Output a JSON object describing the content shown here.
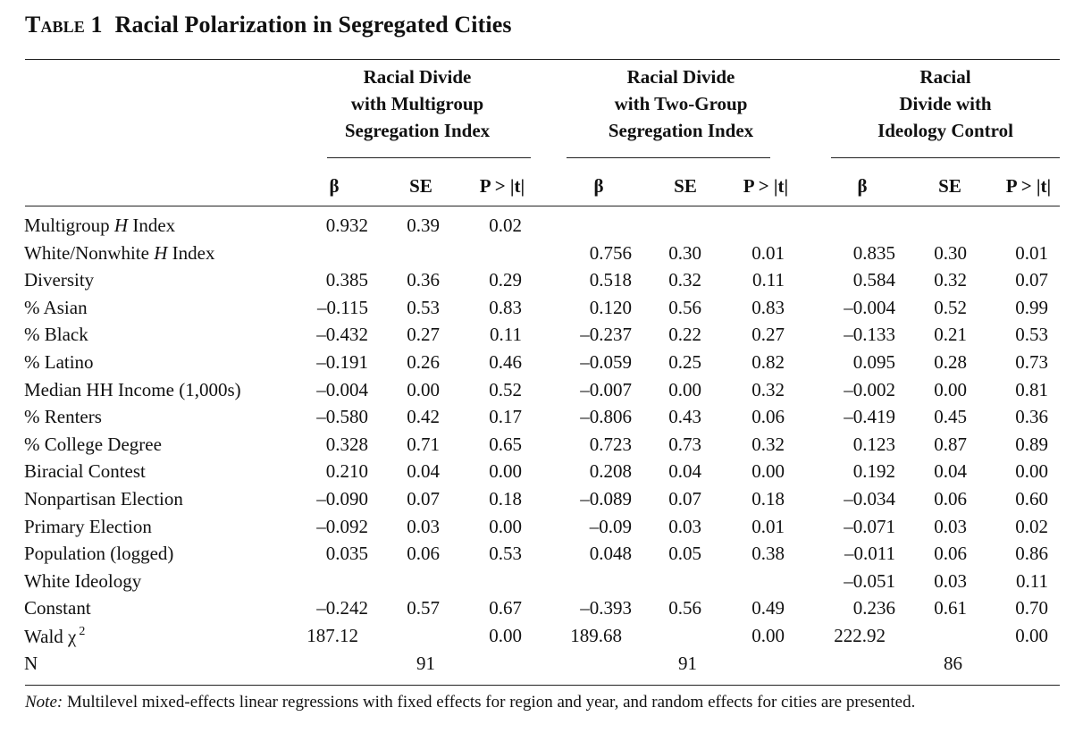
{
  "caption": {
    "label": "Table 1",
    "title": "Racial Polarization in Segregated Cities"
  },
  "groups": [
    {
      "lines": [
        "Racial Divide",
        "with Multigroup",
        "Segregation Index"
      ]
    },
    {
      "lines": [
        "Racial Divide",
        "with Two-Group",
        "Segregation Index"
      ]
    },
    {
      "lines": [
        "Racial",
        "Divide with",
        "Ideology Control"
      ]
    }
  ],
  "col_headers": [
    "β",
    "SE",
    "P > |t|"
  ],
  "rows": [
    {
      "label": "Multigroup H Index",
      "label_parts": [
        "Multigroup ",
        "H",
        " Index"
      ],
      "values": [
        "0.932",
        "0.39",
        "0.02",
        "",
        "",
        "",
        "",
        "",
        ""
      ]
    },
    {
      "label": "White/Nonwhite H Index",
      "label_parts": [
        "White/Nonwhite ",
        "H",
        " Index"
      ],
      "values": [
        "",
        "",
        "",
        "0.756",
        "0.30",
        "0.01",
        "0.835",
        "0.30",
        "0.01"
      ]
    },
    {
      "label": "Diversity",
      "values": [
        "0.385",
        "0.36",
        "0.29",
        "0.518",
        "0.32",
        "0.11",
        "0.584",
        "0.32",
        "0.07"
      ]
    },
    {
      "label": "% Asian",
      "values": [
        "–0.115",
        "0.53",
        "0.83",
        "0.120",
        "0.56",
        "0.83",
        "–0.004",
        "0.52",
        "0.99"
      ]
    },
    {
      "label": "% Black",
      "values": [
        "–0.432",
        "0.27",
        "0.11",
        "–0.237",
        "0.22",
        "0.27",
        "–0.133",
        "0.21",
        "0.53"
      ]
    },
    {
      "label": "% Latino",
      "values": [
        "–0.191",
        "0.26",
        "0.46",
        "–0.059",
        "0.25",
        "0.82",
        "0.095",
        "0.28",
        "0.73"
      ]
    },
    {
      "label": "Median HH Income (1,000s)",
      "values": [
        "–0.004",
        "0.00",
        "0.52",
        "–0.007",
        "0.00",
        "0.32",
        "–0.002",
        "0.00",
        "0.81"
      ]
    },
    {
      "label": "% Renters",
      "values": [
        "–0.580",
        "0.42",
        "0.17",
        "–0.806",
        "0.43",
        "0.06",
        "–0.419",
        "0.45",
        "0.36"
      ]
    },
    {
      "label": "% College Degree",
      "values": [
        "0.328",
        "0.71",
        "0.65",
        "0.723",
        "0.73",
        "0.32",
        "0.123",
        "0.87",
        "0.89"
      ]
    },
    {
      "label": "Biracial Contest",
      "values": [
        "0.210",
        "0.04",
        "0.00",
        "0.208",
        "0.04",
        "0.00",
        "0.192",
        "0.04",
        "0.00"
      ]
    },
    {
      "label": "Nonpartisan Election",
      "values": [
        "–0.090",
        "0.07",
        "0.18",
        "–0.089",
        "0.07",
        "0.18",
        "–0.034",
        "0.06",
        "0.60"
      ]
    },
    {
      "label": "Primary Election",
      "values": [
        "–0.092",
        "0.03",
        "0.00",
        "–0.09",
        "0.03",
        "0.01",
        "–0.071",
        "0.03",
        "0.02"
      ]
    },
    {
      "label": "Population (logged)",
      "values": [
        "0.035",
        "0.06",
        "0.53",
        "0.048",
        "0.05",
        "0.38",
        "–0.011",
        "0.06",
        "0.86"
      ]
    },
    {
      "label": "White Ideology",
      "values": [
        "",
        "",
        "",
        "",
        "",
        "",
        "–0.051",
        "0.03",
        "0.11"
      ]
    },
    {
      "label": "Constant",
      "values": [
        "–0.242",
        "0.57",
        "0.67",
        "–0.393",
        "0.56",
        "0.49",
        "0.236",
        "0.61",
        "0.70"
      ]
    },
    {
      "label": "Wald χ2",
      "label_parts": [
        "Wald χ",
        "2"
      ],
      "values": [
        "187.12",
        "",
        "0.00",
        "189.68",
        "",
        "0.00",
        "222.92",
        "",
        "0.00"
      ]
    },
    {
      "label": "N",
      "values": [
        "",
        "91",
        "",
        "",
        "91",
        "",
        "",
        "86",
        ""
      ]
    }
  ],
  "note": {
    "lead": "Note:",
    "text": " Multilevel mixed-effects linear regressions with fixed effects for region and year, and random effects for cities are presented."
  }
}
